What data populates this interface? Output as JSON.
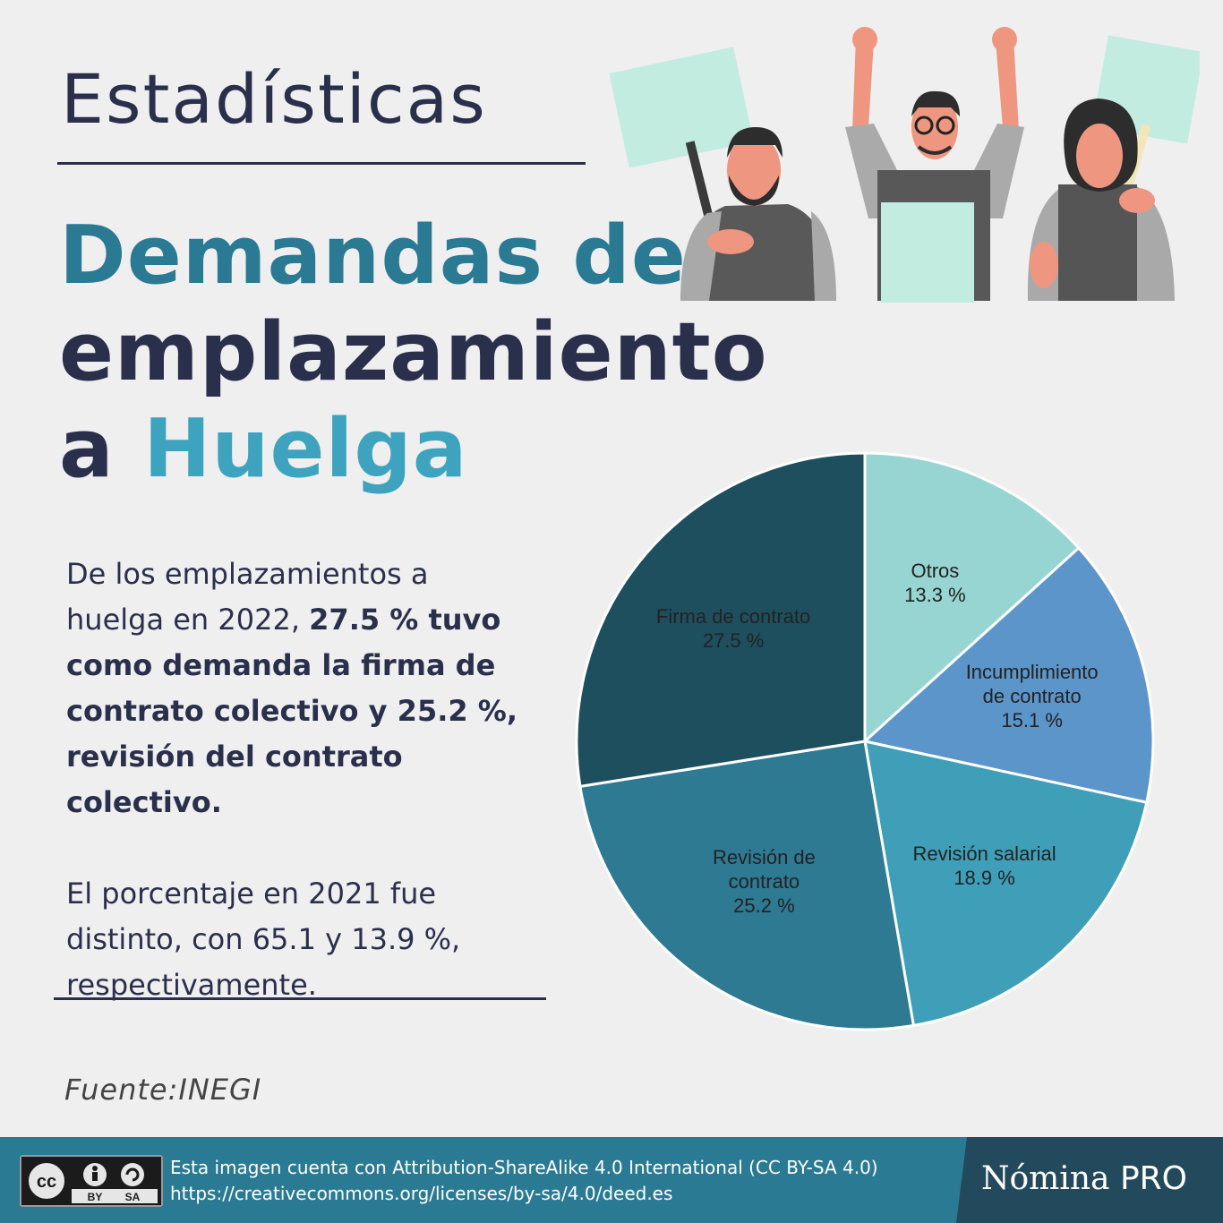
{
  "header": {
    "kicker": "Estadísticas",
    "title_line1": "Demandas de",
    "title_line2": "emplazamiento",
    "title_line3_prefix": "a",
    "title_line3_word": "Huelga"
  },
  "body": {
    "p1_normal": "De los emplazamientos a huelga en 2022, ",
    "p1_bold": "27.5 % tuvo como demanda la firma de contrato colectivo y 25.2 %, revisión del contrato colectivo.",
    "p2": "El porcentaje en 2021 fue distinto, con 65.1 y 13.9 %, respectivamente."
  },
  "source": "Fuente:INEGI",
  "footer": {
    "cc_label": "cc",
    "cc_by": "BY",
    "cc_sa": "SA",
    "license_line1": "Esta imagen cuenta con Attribution-ShareAlike 4.0 International (CC BY-SA 4.0)",
    "license_line2": "https://creativecommons.org/licenses/by-sa/4.0/deed.es",
    "brand_a": "Nómina",
    "brand_b": "PRO"
  },
  "colors": {
    "navy": "#2a2f4c",
    "teal": "#2b7a94",
    "light_teal": "#3ea3be",
    "footer_bg": "#2b7a94",
    "footer_dark": "#224a5c"
  },
  "chart_data": {
    "type": "pie",
    "slices": [
      {
        "label_lines": [
          "Otros"
        ],
        "value_text": "13.3  %",
        "value": 13.3,
        "color": "#97d5d2"
      },
      {
        "label_lines": [
          "Incumplimiento",
          "de contrato"
        ],
        "value_text": "15.1  %",
        "value": 15.1,
        "color": "#5c95c9"
      },
      {
        "label_lines": [
          "Revisión salarial"
        ],
        "value_text": "18.9  %",
        "value": 18.9,
        "color": "#3f9fb8"
      },
      {
        "label_lines": [
          "Revisión de",
          "contrato"
        ],
        "value_text": "25.2 %",
        "value": 25.2,
        "color": "#2e7a93"
      },
      {
        "label_lines": [
          "Firma de contrato"
        ],
        "value_text": "27.5  %",
        "value": 27.5,
        "color": "#1e4f5f"
      }
    ]
  }
}
